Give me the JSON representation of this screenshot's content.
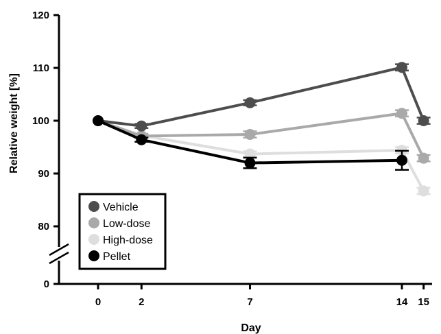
{
  "chart_data": {
    "type": "line",
    "title": "",
    "xlabel": "Day",
    "ylabel": "Relative weight [%]",
    "x": [
      0,
      2,
      7,
      14,
      15
    ],
    "x_ticks": [
      "0",
      "2",
      "7",
      "14",
      "15"
    ],
    "y_ticks": [
      "0",
      "80",
      "90",
      "100",
      "110",
      "120"
    ],
    "ylim": [
      80,
      120
    ],
    "y_axis_break": true,
    "grid": false,
    "legend_position": "bottom-left",
    "series": [
      {
        "name": "Vehicle",
        "color": "#4d4d4d",
        "values": [
          100,
          99.0,
          103.4,
          110.1,
          100.0
        ],
        "errors": [
          0,
          0.4,
          0.5,
          0.6,
          0.6
        ]
      },
      {
        "name": "Low-dose",
        "color": "#a9a9a9",
        "values": [
          100,
          97.1,
          97.4,
          101.4,
          92.9
        ],
        "errors": [
          0,
          0.4,
          0.6,
          0.6,
          0.6
        ]
      },
      {
        "name": "High-dose",
        "color": "#dedede",
        "values": [
          100,
          97.2,
          93.7,
          94.4,
          86.7
        ],
        "errors": [
          0,
          0.4,
          0.5,
          0.6,
          0.6
        ]
      },
      {
        "name": "Pellet",
        "color": "#000000",
        "values": [
          100,
          96.4,
          92.0,
          92.5,
          null
        ],
        "errors": [
          0,
          0.4,
          1.0,
          1.8,
          null
        ]
      }
    ]
  }
}
